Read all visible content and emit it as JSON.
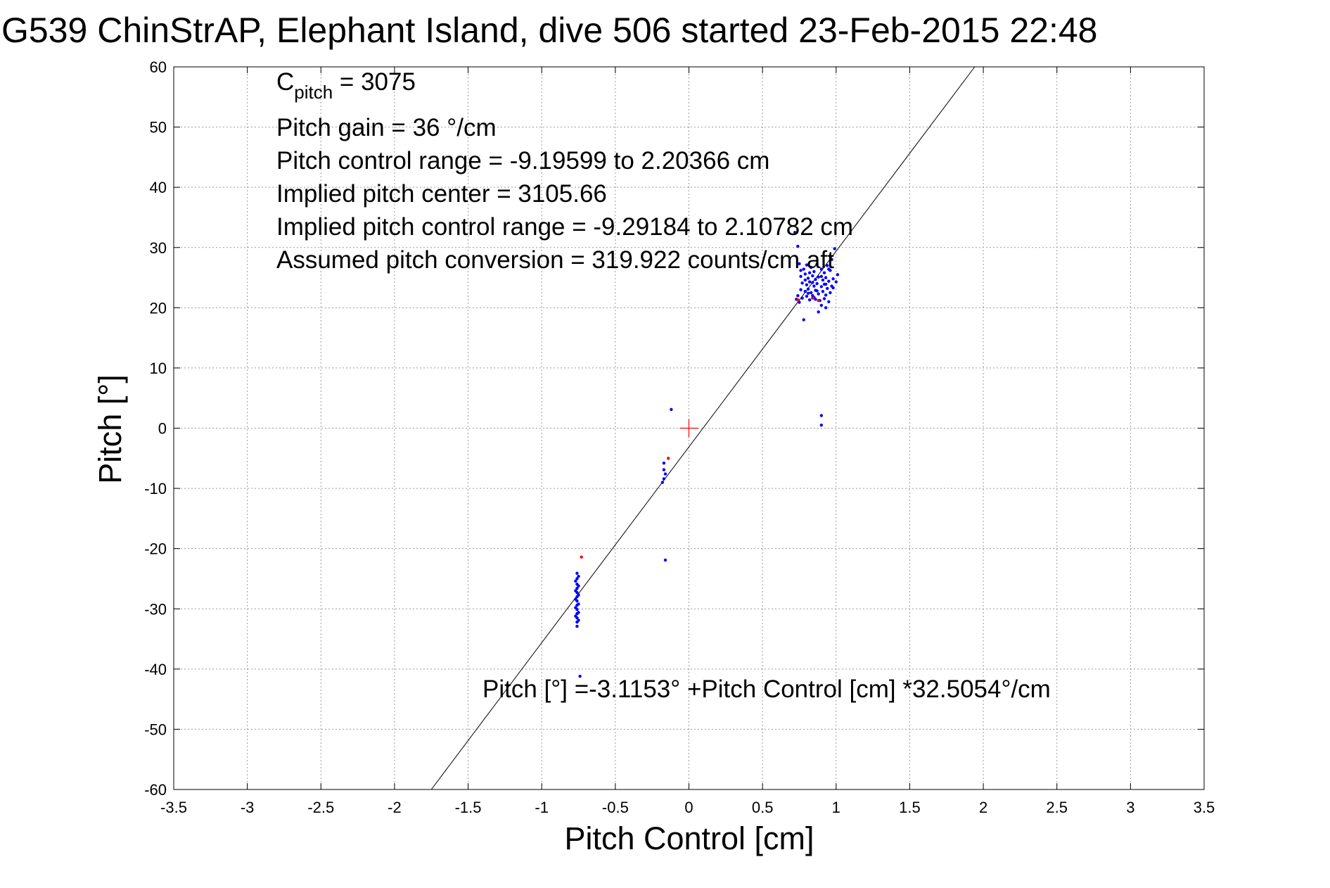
{
  "chart_data": {
    "type": "scatter",
    "title": "G539 ChinStrAP, Elephant Island, dive 506 started 23-Feb-2015 22:48",
    "xlabel": "Pitch Control [cm]",
    "ylabel": "Pitch [°]",
    "xlim": [
      -3.5,
      3.5
    ],
    "ylim": [
      -60,
      60
    ],
    "x_ticks": [
      "-3.5",
      "-3",
      "-2.5",
      "-2",
      "-1.5",
      "-1",
      "-0.5",
      "0",
      "0.5",
      "1",
      "1.5",
      "2",
      "2.5",
      "3",
      "3.5"
    ],
    "y_ticks": [
      "-60",
      "-50",
      "-40",
      "-30",
      "-20",
      "-10",
      "0",
      "10",
      "20",
      "30",
      "40",
      "50",
      "60"
    ],
    "grid": true,
    "annotations": {
      "c_pitch_label": "C",
      "c_pitch_subscript": "pitch",
      "c_pitch_value": " = 3075",
      "lines": [
        "Pitch gain = 36 °/cm",
        "Pitch control range = -9.19599 to 2.20366 cm",
        "Implied pitch center = 3105.66",
        "Implied pitch control range = -9.29184 to 2.10782 cm",
        "Assumed pitch conversion = 319.922 counts/cm aft"
      ],
      "fit_equation": "Pitch [°] =-3.1153° +Pitch Control [cm] *32.5054°/cm"
    },
    "fit_line": {
      "intercept": -3.1153,
      "slope": 32.5054
    },
    "center_marker": {
      "x": 0,
      "y": 0
    },
    "series": [
      {
        "color": "#0000ff",
        "points": [
          [
            0.72,
            32.5
          ],
          [
            0.74,
            30.2
          ],
          [
            0.99,
            29.8
          ],
          [
            0.97,
            28.0
          ],
          [
            0.75,
            27.3
          ],
          [
            0.78,
            26.4
          ],
          [
            0.8,
            27.1
          ],
          [
            0.83,
            26.7
          ],
          [
            0.85,
            26.0
          ],
          [
            0.87,
            27.2
          ],
          [
            0.9,
            26.4
          ],
          [
            0.92,
            25.8
          ],
          [
            0.94,
            27.0
          ],
          [
            0.96,
            26.2
          ],
          [
            1.01,
            25.5
          ],
          [
            0.76,
            25.2
          ],
          [
            0.79,
            25.6
          ],
          [
            0.81,
            24.9
          ],
          [
            0.84,
            25.3
          ],
          [
            0.86,
            24.7
          ],
          [
            0.88,
            25.1
          ],
          [
            0.91,
            24.6
          ],
          [
            0.93,
            25.0
          ],
          [
            0.95,
            24.4
          ],
          [
            0.98,
            24.8
          ],
          [
            0.77,
            24.1
          ],
          [
            0.8,
            23.8
          ],
          [
            0.82,
            24.3
          ],
          [
            0.85,
            23.6
          ],
          [
            0.87,
            24.0
          ],
          [
            0.9,
            23.5
          ],
          [
            0.92,
            23.9
          ],
          [
            0.94,
            23.2
          ],
          [
            0.97,
            23.6
          ],
          [
            0.76,
            23.0
          ],
          [
            0.79,
            22.7
          ],
          [
            0.81,
            23.1
          ],
          [
            0.83,
            22.5
          ],
          [
            0.86,
            22.9
          ],
          [
            0.88,
            22.3
          ],
          [
            0.91,
            22.7
          ],
          [
            0.93,
            22.1
          ],
          [
            0.96,
            22.5
          ],
          [
            0.74,
            22.0
          ],
          [
            0.77,
            21.6
          ],
          [
            0.8,
            21.9
          ],
          [
            0.82,
            21.3
          ],
          [
            0.85,
            21.7
          ],
          [
            0.89,
            21.2
          ],
          [
            0.92,
            21.5
          ],
          [
            0.95,
            21.0
          ],
          [
            0.73,
            21.4
          ],
          [
            0.75,
            20.9
          ],
          [
            0.9,
            20.4
          ],
          [
            0.93,
            20.0
          ],
          [
            0.88,
            19.3
          ],
          [
            0.78,
            18.0
          ],
          [
            0.84,
            22.0
          ],
          [
            0.86,
            21.4
          ],
          [
            0.79,
            24.6
          ],
          [
            0.82,
            25.8
          ],
          [
            0.84,
            24.2
          ],
          [
            0.87,
            22.8
          ],
          [
            0.9,
            25.2
          ],
          [
            0.93,
            23.9
          ],
          [
            0.95,
            26.4
          ],
          [
            0.98,
            23.3
          ],
          [
            1.0,
            24.3
          ],
          [
            0.76,
            26.2
          ],
          [
            0.81,
            22.4
          ],
          [
            0.9,
            0.5
          ],
          [
            0.9,
            2.1
          ],
          [
            -0.12,
            3.1
          ],
          [
            -0.17,
            -5.8
          ],
          [
            -0.17,
            -6.9
          ],
          [
            -0.16,
            -7.6
          ],
          [
            -0.17,
            -8.4
          ],
          [
            -0.18,
            -9.0
          ],
          [
            -0.16,
            -21.9
          ],
          [
            -0.76,
            -24.1
          ],
          [
            -0.76,
            -25.0
          ],
          [
            -0.76,
            -25.9
          ],
          [
            -0.76,
            -26.6
          ],
          [
            -0.76,
            -27.3
          ],
          [
            -0.76,
            -28.0
          ],
          [
            -0.76,
            -28.7
          ],
          [
            -0.76,
            -29.4
          ],
          [
            -0.76,
            -30.1
          ],
          [
            -0.76,
            -30.8
          ],
          [
            -0.76,
            -31.5
          ],
          [
            -0.76,
            -32.2
          ],
          [
            -0.76,
            -32.9
          ],
          [
            -0.75,
            -24.6
          ],
          [
            -0.75,
            -26.2
          ],
          [
            -0.75,
            -27.7
          ],
          [
            -0.75,
            -29.2
          ],
          [
            -0.75,
            -30.6
          ],
          [
            -0.75,
            -31.9
          ],
          [
            -0.77,
            -25.4
          ],
          [
            -0.77,
            -27.0
          ],
          [
            -0.77,
            -28.4
          ],
          [
            -0.77,
            -29.8
          ],
          [
            -0.77,
            -31.2
          ],
          [
            -0.74,
            -41.2
          ]
        ]
      },
      {
        "color": "#ff0000",
        "points": [
          [
            -0.73,
            -21.4
          ],
          [
            -0.14,
            -5.0
          ],
          [
            0.74,
            21.3
          ],
          [
            0.88,
            21.2
          ],
          [
            0.84,
            21.6
          ]
        ]
      }
    ]
  }
}
